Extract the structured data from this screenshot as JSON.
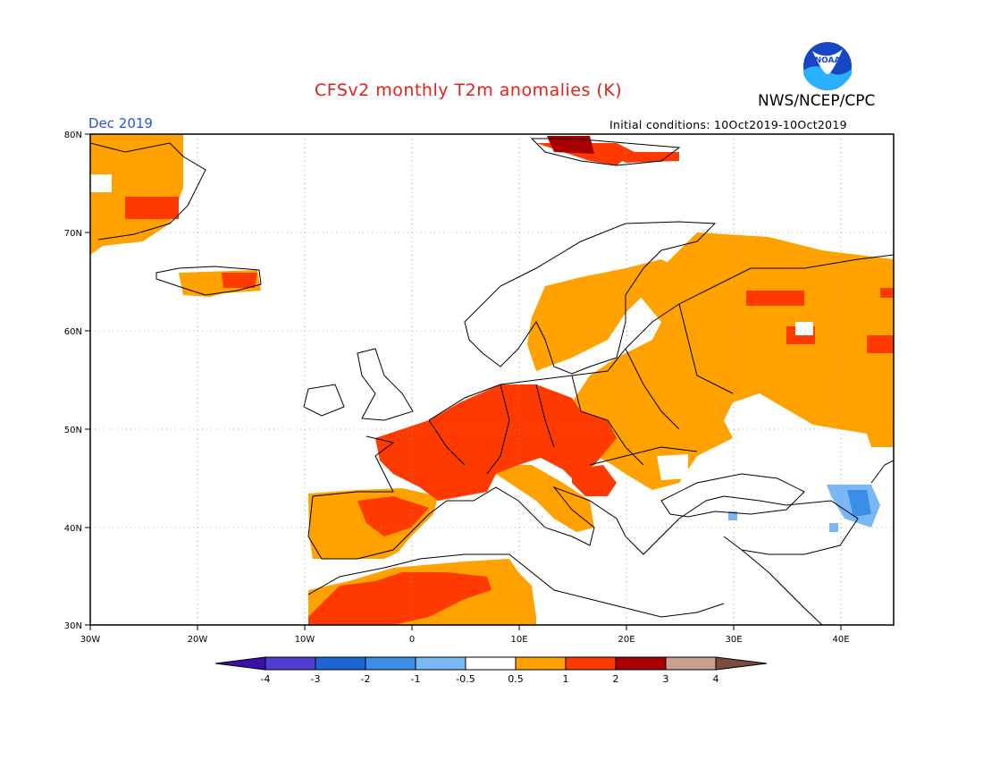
{
  "header": {
    "title": "CFSv2 monthly T2m anomalies (K)",
    "month": "Dec 2019",
    "initial_conditions": "Initial conditions: 10Oct2019-10Oct2019",
    "organization": "NWS/NCEP/CPC",
    "logo_text": "NOAA"
  },
  "map": {
    "lon_labels": [
      "30W",
      "20W",
      "10W",
      "0",
      "10E",
      "20E",
      "30E",
      "40E"
    ],
    "lat_labels": [
      "80N",
      "70N",
      "60N",
      "50N",
      "40N",
      "30N"
    ],
    "lon_range": [
      -30,
      45
    ],
    "lat_range": [
      30,
      80
    ]
  },
  "colorbar": {
    "labels": [
      "-4",
      "-3",
      "-2",
      "-1",
      "-0.5",
      "0.5",
      "1",
      "2",
      "3",
      "4"
    ],
    "colors": [
      "#3c0ea8",
      "#4f3fd1",
      "#1e64d2",
      "#3a8ee8",
      "#7ab8f5",
      "#ffffff",
      "#ffa200",
      "#ff3a00",
      "#a80000",
      "#c8a090",
      "#7a4c3c"
    ]
  },
  "colors": {
    "title": "#e3201b",
    "month": "#2a52d6",
    "land_outline": "#000000",
    "warm_05_1": "#ffa200",
    "warm_1_2": "#ff3a00",
    "warm_2_3": "#a80000",
    "cool_05_1": "#7ab8f5",
    "cool_1_2": "#3a8ee8"
  }
}
